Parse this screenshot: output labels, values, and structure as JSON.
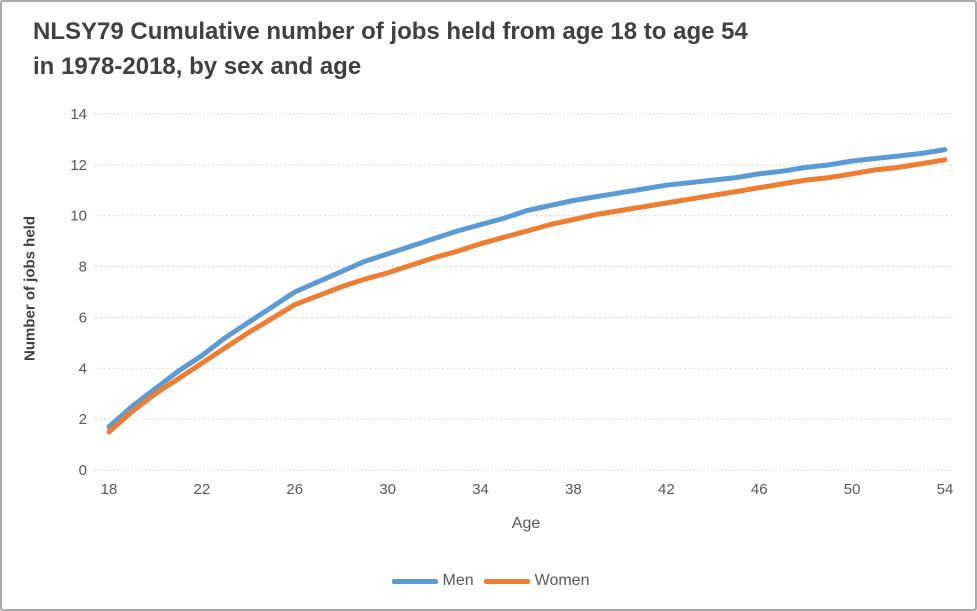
{
  "title": {
    "line1": "NLSY79 Cumulative number of jobs held from age 18 to age 54",
    "line2": "in 1978-2018, by sex and age"
  },
  "chart_data": {
    "type": "line",
    "title": "NLSY79 Cumulative number of jobs held from age 18 to age 54 in 1978-2018, by sex and age",
    "xlabel": "Age",
    "ylabel": "Number of jobs held",
    "x": [
      18,
      19,
      20,
      21,
      22,
      23,
      24,
      25,
      26,
      27,
      28,
      29,
      30,
      31,
      32,
      33,
      34,
      35,
      36,
      37,
      38,
      39,
      40,
      41,
      42,
      43,
      44,
      45,
      46,
      47,
      48,
      49,
      50,
      51,
      52,
      53,
      54
    ],
    "series": [
      {
        "name": "Men",
        "color": "#5B9BD5",
        "values": [
          1.7,
          2.5,
          3.2,
          3.9,
          4.5,
          5.2,
          5.8,
          6.4,
          7.0,
          7.4,
          7.8,
          8.2,
          8.5,
          8.8,
          9.1,
          9.4,
          9.65,
          9.9,
          10.2,
          10.4,
          10.6,
          10.75,
          10.9,
          11.05,
          11.2,
          11.3,
          11.4,
          11.5,
          11.65,
          11.75,
          11.9,
          12.0,
          12.15,
          12.25,
          12.35,
          12.45,
          12.6
        ]
      },
      {
        "name": "Women",
        "color": "#ED7D31",
        "values": [
          1.5,
          2.3,
          3.0,
          3.6,
          4.2,
          4.8,
          5.4,
          5.95,
          6.5,
          6.85,
          7.2,
          7.5,
          7.75,
          8.05,
          8.35,
          8.6,
          8.9,
          9.15,
          9.4,
          9.65,
          9.85,
          10.05,
          10.2,
          10.35,
          10.5,
          10.65,
          10.8,
          10.95,
          11.1,
          11.25,
          11.4,
          11.5,
          11.65,
          11.8,
          11.9,
          12.05,
          12.2
        ]
      }
    ],
    "xlim": [
      18,
      54
    ],
    "ylim": [
      0,
      14
    ],
    "xticks": [
      18,
      22,
      26,
      30,
      34,
      38,
      42,
      46,
      50,
      54
    ],
    "yticks": [
      0,
      2,
      4,
      6,
      8,
      10,
      12,
      14
    ],
    "grid": true,
    "gridline_color": "#D6D6D6",
    "legend_position": "bottom"
  },
  "colors": {
    "background": "#FFFFFF",
    "frame_border": "#ABABAB",
    "title_text": "#404040",
    "axis_text": "#595959"
  }
}
